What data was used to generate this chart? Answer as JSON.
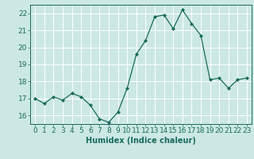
{
  "x": [
    0,
    1,
    2,
    3,
    4,
    5,
    6,
    7,
    8,
    9,
    10,
    11,
    12,
    13,
    14,
    15,
    16,
    17,
    18,
    19,
    20,
    21,
    22,
    23
  ],
  "y": [
    17.0,
    16.7,
    17.1,
    16.9,
    17.3,
    17.1,
    16.6,
    15.8,
    15.6,
    16.2,
    17.6,
    19.6,
    20.4,
    21.8,
    21.9,
    21.1,
    22.2,
    21.4,
    20.7,
    18.1,
    18.2,
    17.6,
    18.1,
    18.2
  ],
  "line_color": "#1a6b5a",
  "marker": "D",
  "marker_size": 2,
  "bg_color": "#cce8e4",
  "grid_color": "#ffffff",
  "axis_color": "#1a6b5a",
  "xlabel": "Humidex (Indice chaleur)",
  "xlim": [
    -0.5,
    23.5
  ],
  "ylim": [
    15.5,
    22.5
  ],
  "yticks": [
    16,
    17,
    18,
    19,
    20,
    21,
    22
  ],
  "xticks": [
    0,
    1,
    2,
    3,
    4,
    5,
    6,
    7,
    8,
    9,
    10,
    11,
    12,
    13,
    14,
    15,
    16,
    17,
    18,
    19,
    20,
    21,
    22,
    23
  ],
  "xlabel_fontsize": 7,
  "tick_fontsize": 6.5
}
